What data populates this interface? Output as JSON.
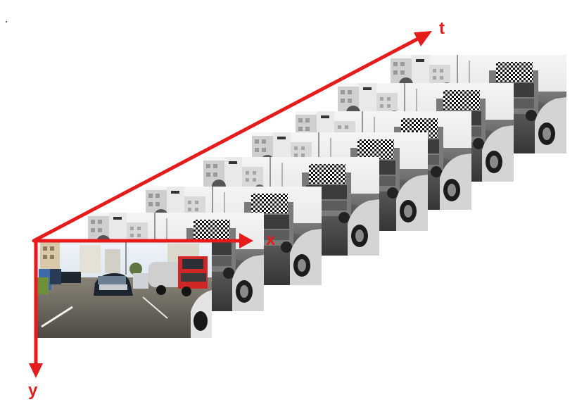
{
  "axes": {
    "t_label": "t",
    "x_label": "x",
    "y_label": "y",
    "color": "#e61b1b"
  },
  "frames": {
    "count": 9,
    "first_frame": "color",
    "other_frames": "grayscale"
  }
}
